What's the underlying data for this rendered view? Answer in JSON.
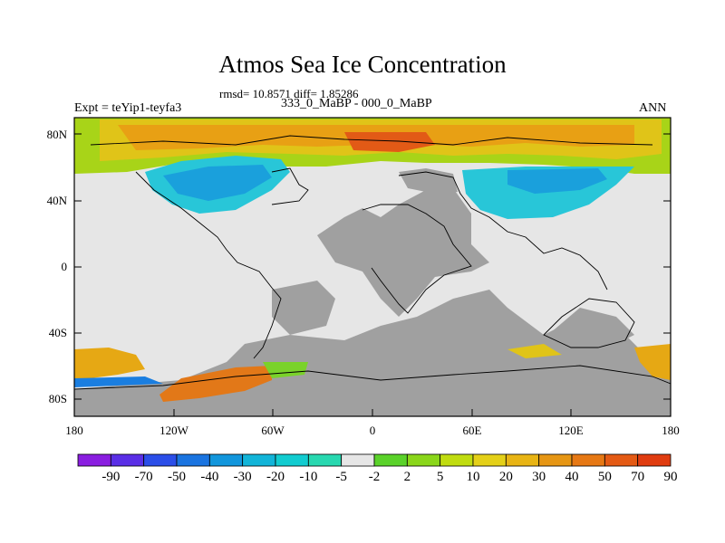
{
  "title": "Atmos Sea Ice Concentration",
  "stats": "rmsd= 10.8571 diff= 1.85286",
  "period": "333_0_MaBP - 000_0_MaBP",
  "experiment": "Expt = teYip1-teyfa3",
  "season": "ANN",
  "map": {
    "lat_labels": [
      "80N",
      "40N",
      "0",
      "40S",
      "80S"
    ],
    "lon_labels": [
      "180",
      "120W",
      "60W",
      "0",
      "60E",
      "120E",
      "180"
    ],
    "land_color": "#a0a0a0",
    "no_change_color": "#e6e6e6"
  },
  "colorbar": {
    "labels": [
      "-90",
      "-70",
      "-50",
      "-40",
      "-30",
      "-20",
      "-10",
      "-5",
      "-2",
      "2",
      "5",
      "10",
      "20",
      "30",
      "40",
      "50",
      "70",
      "90"
    ],
    "colors": [
      "#8a1ee0",
      "#5a2fe6",
      "#2b4ee8",
      "#1a74e0",
      "#1296dc",
      "#12b4d8",
      "#12ccd0",
      "#28d8b0",
      "#e6e6e6",
      "#5ad22a",
      "#8ad61a",
      "#c0dc10",
      "#e4d018",
      "#e8b414",
      "#e69614",
      "#e67814",
      "#e45a14",
      "#e03c10"
    ]
  }
}
